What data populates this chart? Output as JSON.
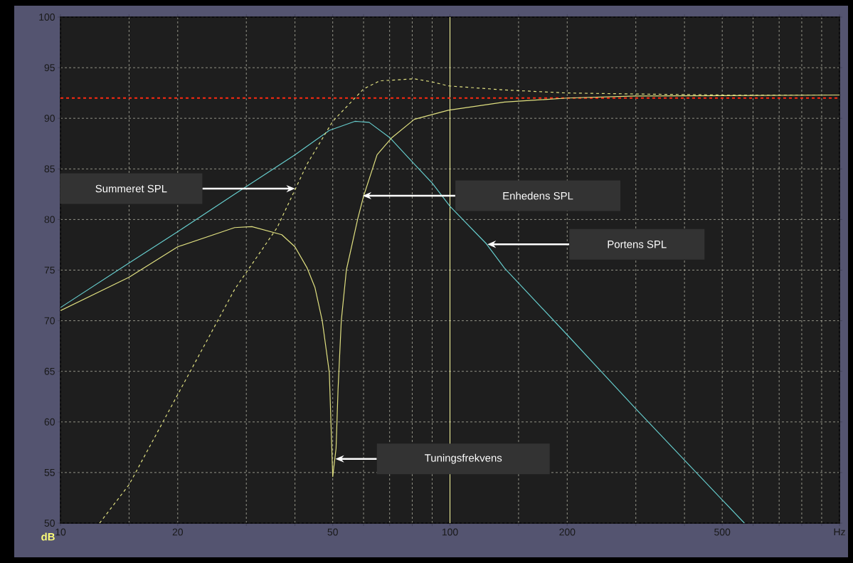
{
  "chart_data": {
    "type": "line",
    "ylabel": "dB",
    "log": "x",
    "grid": true,
    "marker": "none",
    "xlim": [
      10,
      1000
    ],
    "ylim": [
      50,
      100
    ],
    "xticks": [
      10,
      {
        "value": 15,
        "label": null
      },
      20,
      {
        "value": 30,
        "label": null
      },
      {
        "value": 40,
        "label": null
      },
      50,
      {
        "value": 60,
        "label": null
      },
      {
        "value": 70,
        "label": null
      },
      {
        "value": 80,
        "label": null
      },
      {
        "value": 90,
        "label": null
      },
      100,
      {
        "value": 150,
        "label": null
      },
      200,
      {
        "value": 300,
        "label": null
      },
      {
        "value": 400,
        "label": null
      },
      500,
      {
        "value": 600,
        "label": null
      },
      {
        "value": 700,
        "label": null
      },
      {
        "value": 800,
        "label": null
      },
      {
        "value": 900,
        "label": null
      },
      {
        "value": 1000,
        "label": "Hz"
      }
    ],
    "yticks": [
      50,
      55,
      60,
      65,
      70,
      75,
      80,
      85,
      90,
      95,
      100
    ],
    "series": [
      {
        "color": "#66cccc",
        "line_style": "solid",
        "x": [
          10,
          15,
          20,
          28,
          40,
          49,
          57,
          62,
          70,
          80,
          90,
          100,
          124,
          138,
          200,
          300,
          500,
          570
        ],
        "values": [
          71.3,
          75.7,
          78.8,
          82.5,
          86.4,
          88.8,
          89.7,
          89.6,
          88.1,
          85.7,
          83.6,
          81.3,
          77.6,
          75.2,
          68.6,
          61.3,
          52.3,
          50.0
        ]
      },
      {
        "color": "#e0e080",
        "line_style": "solid",
        "x": [
          10,
          15,
          20,
          28,
          31,
          37,
          40,
          43,
          45,
          47,
          49,
          49.5,
          50,
          51,
          51.6,
          52.6,
          54.2,
          58,
          60,
          65,
          71,
          81,
          99,
          138,
          200,
          300,
          1000
        ],
        "values": [
          71.0,
          74.3,
          77.3,
          79.2,
          79.3,
          78.5,
          77.3,
          75.2,
          73.3,
          70.0,
          64.9,
          59.7,
          54.6,
          57.4,
          63.2,
          70.0,
          75.0,
          80.1,
          82.3,
          86.4,
          88.1,
          89.9,
          90.8,
          91.6,
          92.0,
          92.2,
          92.3
        ]
      },
      {
        "color": "#e0e080",
        "line_style": "dashed",
        "x": [
          12.6,
          15,
          20,
          28,
          36,
          43,
          50,
          60,
          66,
          81,
          90,
          99,
          117,
          138,
          200,
          300,
          500,
          1000
        ],
        "values": [
          50.0,
          53.8,
          62.7,
          73.1,
          79.2,
          85.5,
          89.7,
          92.9,
          93.7,
          93.9,
          93.6,
          93.2,
          93.0,
          92.8,
          92.5,
          92.4,
          92.3,
          92.3
        ]
      }
    ],
    "ref_lines": [
      {
        "axis": "x",
        "value": 100,
        "color": "#ffffa0",
        "line_style": "solid"
      },
      {
        "axis": "y",
        "value": 92,
        "color": "#ff2a10",
        "line_style": "dashed"
      }
    ],
    "annotations": [
      "Summeret SPL",
      "Enhedens SPL",
      "Portens SPL",
      "Tuningsfrekvens"
    ]
  }
}
